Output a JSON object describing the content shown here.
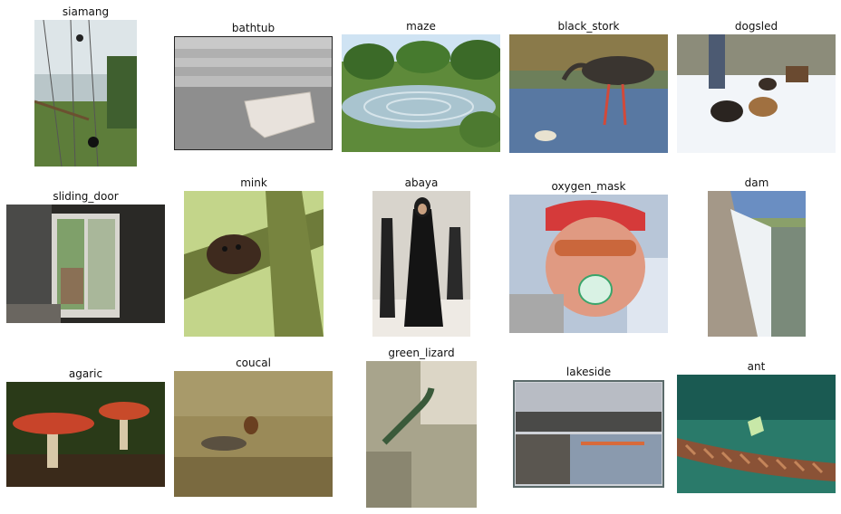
{
  "grid": {
    "items": [
      {
        "label": "siamang"
      },
      {
        "label": "bathtub"
      },
      {
        "label": "maze"
      },
      {
        "label": "black_stork"
      },
      {
        "label": "dogsled"
      },
      {
        "label": "sliding_door"
      },
      {
        "label": "mink"
      },
      {
        "label": "abaya"
      },
      {
        "label": "oxygen_mask"
      },
      {
        "label": "dam"
      },
      {
        "label": "agaric"
      },
      {
        "label": "coucal"
      },
      {
        "label": "green_lizard"
      },
      {
        "label": "lakeside"
      },
      {
        "label": "ant"
      }
    ]
  }
}
